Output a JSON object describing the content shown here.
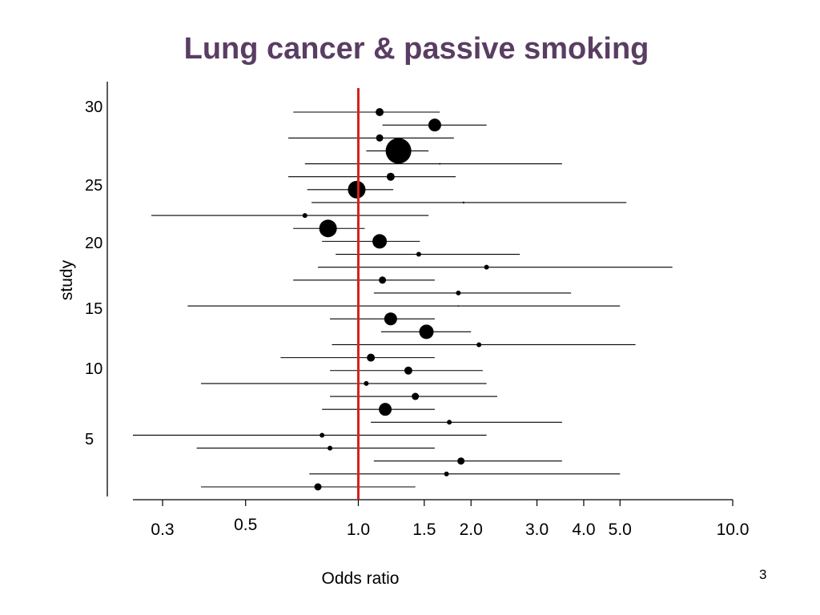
{
  "slide": {
    "title": "Lung cancer & passive smoking",
    "page_number": "3"
  },
  "chart_data": {
    "type": "forest-plot",
    "title": "Lung cancer & passive smoking",
    "xlabel": "Odds ratio",
    "ylabel": "study",
    "x_scale": "log",
    "xlim": [
      0.25,
      10.0
    ],
    "ylim": [
      0.5,
      31.5
    ],
    "x_ticks": [
      {
        "value": 0.3,
        "label": "0.3"
      },
      {
        "value": 0.5,
        "label": "0.5"
      },
      {
        "value": 1.0,
        "label": "1.0"
      },
      {
        "value": 1.5,
        "label": "1.5"
      },
      {
        "value": 2.0,
        "label": "2.0"
      },
      {
        "value": 3.0,
        "label": "3.0"
      },
      {
        "value": 4.0,
        "label": "4.0"
      },
      {
        "value": 5.0,
        "label": "5.0"
      },
      {
        "value": 10.0,
        "label": "10.0"
      }
    ],
    "y_ticks": [
      {
        "value": 5,
        "label": "5"
      },
      {
        "value": 10,
        "label": "10"
      },
      {
        "value": 15,
        "label": "15"
      },
      {
        "value": 20,
        "label": "20"
      },
      {
        "value": 25,
        "label": "25"
      },
      {
        "value": 30,
        "label": "30"
      }
    ],
    "reference_line": {
      "x": 1.0,
      "color": "#d62020"
    },
    "colors": {
      "point": "#000000",
      "ci_line": "#000000",
      "axis": "#000000"
    },
    "studies": [
      {
        "study": 30,
        "or": 1.14,
        "lower": 0.67,
        "upper": 1.65,
        "size": 5
      },
      {
        "study": 29,
        "or": 1.6,
        "lower": 1.16,
        "upper": 2.2,
        "size": 8
      },
      {
        "study": 28,
        "or": 1.14,
        "lower": 0.65,
        "upper": 1.8,
        "size": 4.5
      },
      {
        "study": 27,
        "or": 1.28,
        "lower": 1.05,
        "upper": 1.54,
        "size": 16
      },
      {
        "study": 26,
        "or": 1.65,
        "lower": 0.72,
        "upper": 3.5,
        "size": 1
      },
      {
        "study": 25,
        "or": 1.22,
        "lower": 0.65,
        "upper": 1.82,
        "size": 5
      },
      {
        "study": 24,
        "or": 0.99,
        "lower": 0.73,
        "upper": 1.24,
        "size": 11
      },
      {
        "study": 23,
        "or": 1.91,
        "lower": 0.75,
        "upper": 5.2,
        "size": 1.2
      },
      {
        "study": 22,
        "or": 0.72,
        "lower": 0.28,
        "upper": 1.54,
        "size": 3
      },
      {
        "study": 21,
        "or": 0.83,
        "lower": 0.67,
        "upper": 1.04,
        "size": 11
      },
      {
        "study": 20,
        "or": 1.14,
        "lower": 0.8,
        "upper": 1.46,
        "size": 9
      },
      {
        "study": 19,
        "or": 1.45,
        "lower": 0.87,
        "upper": 2.7,
        "size": 3
      },
      {
        "study": 18,
        "or": 2.2,
        "lower": 0.78,
        "upper": 6.9,
        "size": 3
      },
      {
        "study": 17,
        "or": 1.16,
        "lower": 0.67,
        "upper": 1.6,
        "size": 4.5
      },
      {
        "study": 16,
        "or": 1.85,
        "lower": 1.1,
        "upper": 3.7,
        "size": 3
      },
      {
        "study": 15,
        "or": 1.85,
        "lower": 0.35,
        "upper": 5.0,
        "size": 0.8
      },
      {
        "study": 14,
        "or": 1.22,
        "lower": 0.84,
        "upper": 1.6,
        "size": 8
      },
      {
        "study": 13,
        "or": 1.52,
        "lower": 1.15,
        "upper": 2.0,
        "size": 9
      },
      {
        "study": 12,
        "or": 2.1,
        "lower": 0.85,
        "upper": 5.5,
        "size": 3
      },
      {
        "study": 11,
        "or": 1.08,
        "lower": 0.62,
        "upper": 1.6,
        "size": 5
      },
      {
        "study": 10,
        "or": 1.36,
        "lower": 0.84,
        "upper": 2.15,
        "size": 5
      },
      {
        "study": 9,
        "or": 1.05,
        "lower": 0.38,
        "upper": 2.2,
        "size": 3
      },
      {
        "study": 8,
        "or": 1.42,
        "lower": 0.84,
        "upper": 2.35,
        "size": 4.5
      },
      {
        "study": 7,
        "or": 1.18,
        "lower": 0.8,
        "upper": 1.6,
        "size": 8
      },
      {
        "study": 6,
        "or": 1.75,
        "lower": 1.08,
        "upper": 3.5,
        "size": 3
      },
      {
        "study": 5,
        "or": 0.8,
        "lower": 0.25,
        "upper": 2.2,
        "size": 3
      },
      {
        "study": 4,
        "or": 0.84,
        "lower": 0.37,
        "upper": 1.6,
        "size": 3
      },
      {
        "study": 3,
        "or": 1.88,
        "lower": 1.1,
        "upper": 3.5,
        "size": 4.5
      },
      {
        "study": 2,
        "or": 1.72,
        "lower": 0.74,
        "upper": 5.0,
        "size": 3
      },
      {
        "study": 1,
        "or": 0.78,
        "lower": 0.38,
        "upper": 1.42,
        "size": 4.5
      }
    ]
  }
}
